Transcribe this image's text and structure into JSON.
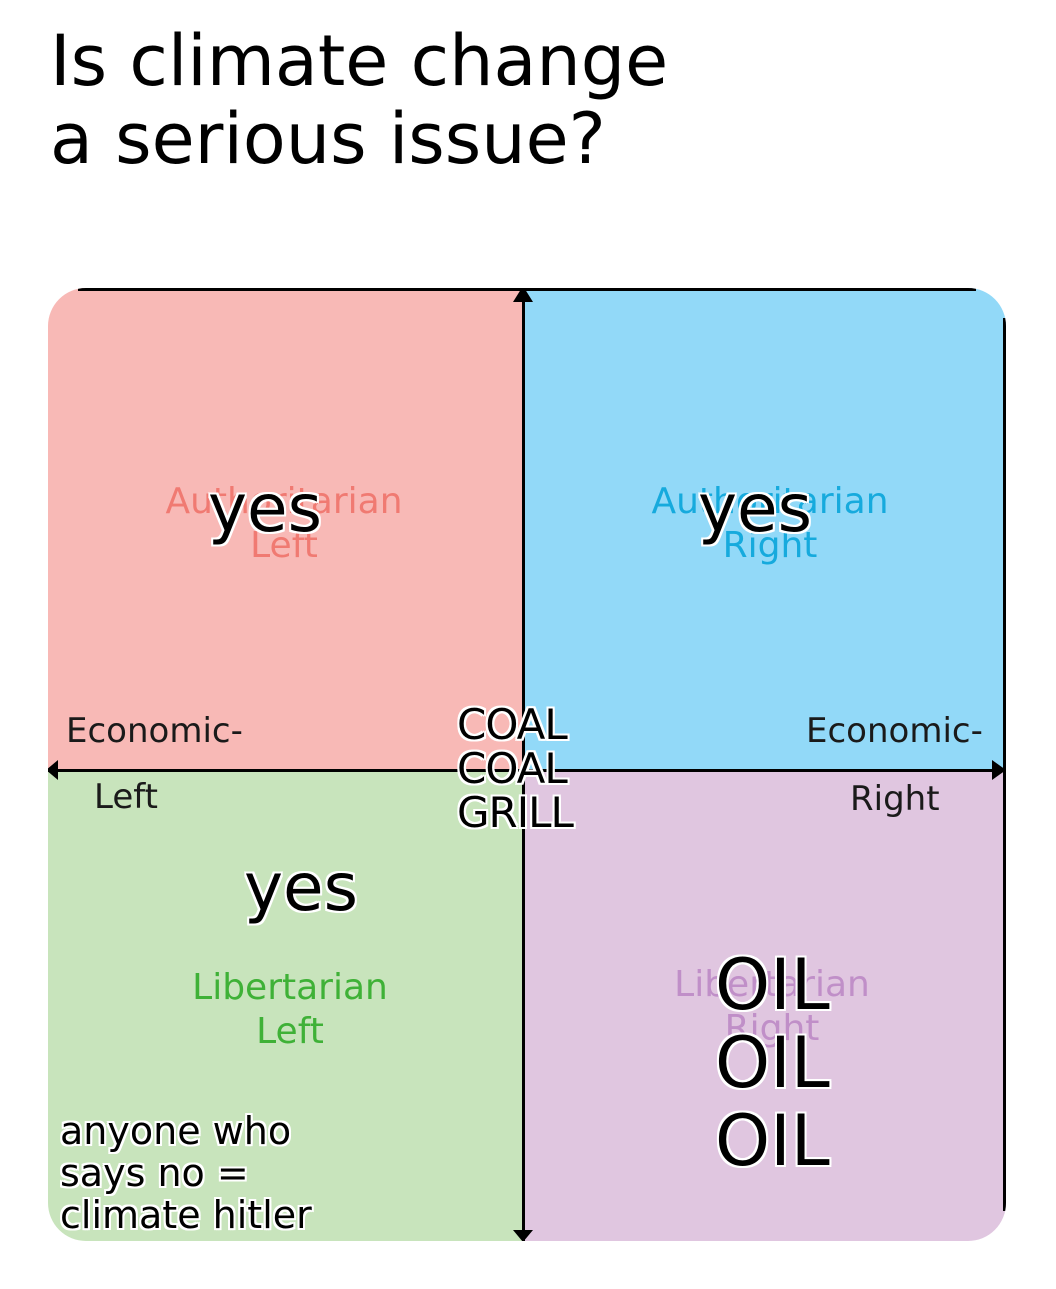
{
  "title": "Is climate change\na serious issue?",
  "colors": {
    "auth_left": "#f8b9b6",
    "auth_right": "#92d9f8",
    "lib_left": "#c8e4bc",
    "lib_right": "#e0c6e0",
    "auth_left_text": "#f07a72",
    "auth_right_text": "#16aadd",
    "lib_left_text": "#3fb137",
    "lib_right_text": "#c08fc8"
  },
  "quadrants": {
    "auth_left": "Authoritarian\nLeft",
    "auth_right": "Authoritarian\nRight",
    "lib_left": "Libertarian\nLeft",
    "lib_right": "Libertarian\nRight"
  },
  "axis": {
    "left_top": "Economic-",
    "left_bottom": "Left",
    "right_top": "Economic-",
    "right_bottom": "Right"
  },
  "answers": {
    "auth_left": "yes",
    "auth_right": "yes",
    "lib_left": "yes",
    "center": "COAL\nCOAL\nGRILL",
    "lib_right": "OIL\nOIL\nOIL",
    "lib_left_note": "anyone who\nsays no =\nclimate hitler"
  }
}
